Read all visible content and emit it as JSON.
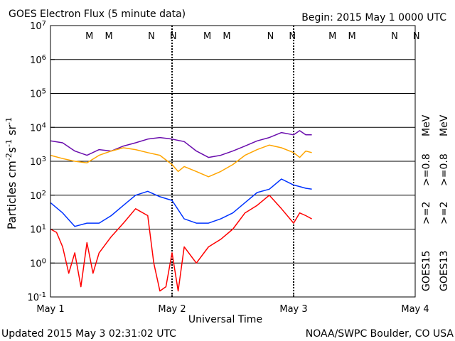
{
  "header": {
    "title": "GOES Electron Flux (5 minute data)",
    "begin": "Begin: 2015 May 1 0000 UTC"
  },
  "footer": {
    "updated": "Updated 2015 May  3 02:31:02 UTC",
    "credit": "NOAA/SWPC Boulder, CO USA"
  },
  "colors": {
    "goes15_2mev": "#0033ff",
    "goes13_2mev": "#ff0000",
    "goes15_08mev": "#6a0dad",
    "goes13_08mev": "#ffa500",
    "M_marker": "#ff0000",
    "N_marker": "#0000ff"
  },
  "chart_data": {
    "type": "line",
    "title": "GOES Electron Flux (5 minute data)",
    "xlabel": "Universal Time",
    "ylabel": "Particles cm^-2 s^-1 sr^-1",
    "ylabel_parts": {
      "base": "Particles cm",
      "e1": "-2",
      "s": "s",
      "e2": "-1",
      "sr": " sr",
      "e3": "-1"
    },
    "y_scale": "log",
    "ylim": [
      0.1,
      10000000
    ],
    "xlim": [
      0,
      3
    ],
    "x_ticks": [
      0,
      1,
      2,
      3
    ],
    "x_tick_labels": [
      "May 1",
      "May 2",
      "May 3",
      "May 4"
    ],
    "y_ticks": [
      {
        "base": "10",
        "exp": "7"
      },
      {
        "base": "10",
        "exp": "6"
      },
      {
        "base": "10",
        "exp": "5"
      },
      {
        "base": "10",
        "exp": "4"
      },
      {
        "base": "10",
        "exp": "3"
      },
      {
        "base": "10",
        "exp": "2"
      },
      {
        "base": "10",
        "exp": "1"
      },
      {
        "base": "10",
        "exp": "0"
      },
      {
        "base": "10",
        "exp": "-1"
      }
    ],
    "grid": "horizontal at each decade",
    "threshold": 1000,
    "legend": {
      "placement": "right",
      "goes15": "GOES15",
      "goes13": "GOES13",
      "gt2": ">=2",
      "gt08": ">=0.8",
      "unit": "MeV"
    },
    "markers": [
      {
        "x": 0.32,
        "label": "M"
      },
      {
        "x": 0.48,
        "label": "M"
      },
      {
        "x": 0.83,
        "label": "N"
      },
      {
        "x": 1.01,
        "label": "N"
      },
      {
        "x": 1.29,
        "label": "M"
      },
      {
        "x": 1.45,
        "label": "M"
      },
      {
        "x": 1.81,
        "label": "N"
      },
      {
        "x": 1.99,
        "label": "N"
      },
      {
        "x": 2.32,
        "label": "M"
      },
      {
        "x": 2.48,
        "label": "M"
      },
      {
        "x": 2.83,
        "label": "N"
      },
      {
        "x": 3.01,
        "label": "N"
      }
    ],
    "series": [
      {
        "name": ">=0.8 MeV",
        "label": "GOES15 >=0.8 MeV",
        "color": "#6a0dad",
        "x": [
          0,
          0.1,
          0.2,
          0.3,
          0.4,
          0.5,
          0.6,
          0.7,
          0.8,
          0.9,
          1.0,
          1.1,
          1.2,
          1.3,
          1.4,
          1.5,
          1.6,
          1.7,
          1.8,
          1.9,
          2.0,
          2.05,
          2.1,
          2.15
        ],
        "y": [
          4000,
          3500,
          2000,
          1500,
          2200,
          2000,
          2800,
          3500,
          4500,
          5000,
          4500,
          3800,
          2000,
          1300,
          1500,
          2000,
          2800,
          4000,
          5000,
          7000,
          6000,
          8000,
          6000,
          6000
        ]
      },
      {
        "name": ">=0.8 MeV",
        "label": "GOES13 >=0.8 MeV",
        "color": "#ffa500",
        "x": [
          0,
          0.1,
          0.2,
          0.3,
          0.4,
          0.5,
          0.6,
          0.7,
          0.8,
          0.9,
          1.0,
          1.05,
          1.1,
          1.2,
          1.3,
          1.4,
          1.5,
          1.6,
          1.7,
          1.8,
          1.9,
          2.0,
          2.05,
          2.1,
          2.15
        ],
        "y": [
          1500,
          1200,
          1000,
          900,
          1500,
          2000,
          2500,
          2200,
          1800,
          1500,
          800,
          500,
          700,
          500,
          350,
          500,
          800,
          1500,
          2200,
          3000,
          2500,
          1800,
          1300,
          2000,
          1800
        ]
      },
      {
        "name": ">=2 MeV",
        "label": "GOES15 >=2 MeV",
        "color": "#0033ff",
        "x": [
          0,
          0.1,
          0.2,
          0.3,
          0.4,
          0.5,
          0.6,
          0.7,
          0.8,
          0.9,
          1.0,
          1.1,
          1.2,
          1.3,
          1.4,
          1.5,
          1.6,
          1.7,
          1.8,
          1.9,
          2.0,
          2.05,
          2.1,
          2.15
        ],
        "y": [
          60,
          30,
          12,
          15,
          15,
          25,
          50,
          100,
          130,
          90,
          70,
          20,
          15,
          15,
          20,
          30,
          60,
          120,
          150,
          300,
          200,
          180,
          160,
          150
        ]
      },
      {
        "name": ">=2 MeV",
        "label": "GOES13 >=2 MeV",
        "color": "#ff0000",
        "x": [
          0,
          0.05,
          0.1,
          0.15,
          0.2,
          0.25,
          0.3,
          0.35,
          0.4,
          0.5,
          0.6,
          0.7,
          0.8,
          0.85,
          0.9,
          0.95,
          1.0,
          1.05,
          1.1,
          1.2,
          1.3,
          1.4,
          1.5,
          1.6,
          1.7,
          1.8,
          1.9,
          2.0,
          2.05,
          2.1,
          2.15
        ],
        "y": [
          10,
          8,
          3,
          0.5,
          2,
          0.2,
          4,
          0.5,
          2,
          6,
          15,
          40,
          25,
          1,
          0.15,
          0.2,
          2,
          0.15,
          3,
          1,
          3,
          5,
          10,
          30,
          50,
          100,
          40,
          15,
          30,
          25,
          20
        ]
      }
    ]
  }
}
